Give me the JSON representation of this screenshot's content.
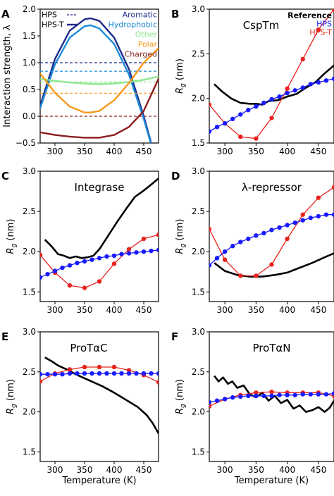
{
  "panel_letters": [
    "A",
    "B",
    "C",
    "D",
    "E",
    "F"
  ],
  "common": {
    "xlabel": "Temperature (K)",
    "ylabel_rg": "R",
    "ylabel_rg_sub": "g",
    "ylabel_rg_unit": " (nm)",
    "xticks": [
      300,
      350,
      400,
      450
    ],
    "colors": {
      "reference": "#000000",
      "hps": "#1a1aff",
      "hpst": "#e8231e"
    }
  },
  "legend_rg": {
    "reference": "Reference",
    "hps": "HPS",
    "hpst": "HPS-T"
  },
  "chart_data": [
    {
      "type": "line",
      "panel": "A",
      "title": "",
      "xlabel": "",
      "ylabel": "Interaction strength, λ",
      "xlim": [
        275,
        475
      ],
      "ylim": [
        -0.5,
        2.0
      ],
      "yticks": [
        -0.5,
        0.0,
        0.5,
        1.0,
        1.5,
        2.0
      ],
      "ytick_labels": [
        "−0.5",
        "0.0",
        "0.5",
        "1.0",
        "1.5",
        "2.0"
      ],
      "model_legend": [
        {
          "name": "HPS",
          "style": "dashed"
        },
        {
          "name": "HPS-T",
          "style": "solid"
        }
      ],
      "series": [
        {
          "name": "Aromatic",
          "color": "#1f2a8c",
          "hps": 1.0,
          "x": [
            275,
            300,
            325,
            350,
            360,
            375,
            400,
            425,
            450,
            475
          ],
          "values": [
            0.2,
            1.07,
            1.6,
            1.81,
            1.83,
            1.78,
            1.47,
            0.88,
            0.0,
            -1.0
          ]
        },
        {
          "name": "Hydrophobic",
          "color": "#1c8ad8",
          "hps": 0.84,
          "x": [
            275,
            300,
            325,
            350,
            360,
            375,
            400,
            425,
            450,
            475
          ],
          "values": [
            0.15,
            0.97,
            1.47,
            1.68,
            1.7,
            1.64,
            1.35,
            0.78,
            -0.05,
            -1.0
          ]
        },
        {
          "name": "Other",
          "color": "#8ee88e",
          "hps": 0.64,
          "x": [
            275,
            300,
            325,
            350,
            375,
            400,
            425,
            450,
            475
          ],
          "values": [
            0.7,
            0.66,
            0.63,
            0.61,
            0.6,
            0.61,
            0.64,
            0.68,
            0.74
          ]
        },
        {
          "name": "Polar",
          "color": "#f59a1b",
          "hps": 0.43,
          "x": [
            275,
            300,
            325,
            350,
            360,
            375,
            400,
            425,
            450,
            475
          ],
          "values": [
            0.8,
            0.44,
            0.18,
            0.07,
            0.07,
            0.1,
            0.3,
            0.62,
            1.0,
            1.27
          ]
        },
        {
          "name": "Charged",
          "color": "#8c1c1c",
          "hps": 0.0,
          "x": [
            275,
            300,
            325,
            350,
            365,
            375,
            400,
            425,
            450,
            475
          ],
          "values": [
            -0.3,
            -0.35,
            -0.38,
            -0.4,
            -0.4,
            -0.4,
            -0.35,
            -0.2,
            0.1,
            0.7
          ]
        }
      ]
    },
    {
      "type": "line",
      "panel": "B",
      "title": "CspTm",
      "xlim": [
        275,
        475
      ],
      "ylim": [
        1.5,
        3.0
      ],
      "yticks": [
        1.5,
        2.0,
        2.5,
        3.0
      ],
      "ytick_labels": [
        "1.5",
        "2.0",
        "2.5",
        "3.0"
      ],
      "show_legend": true,
      "reference": {
        "x": [
          283,
          295,
          310,
          325,
          340,
          350,
          360,
          370,
          385,
          400,
          415,
          430,
          445,
          460,
          475
        ],
        "values": [
          2.16,
          2.08,
          2.0,
          1.95,
          1.94,
          1.94,
          1.93,
          1.97,
          1.98,
          2.02,
          2.05,
          2.12,
          2.18,
          2.28,
          2.37
        ]
      },
      "hps": {
        "x": [
          275,
          287.5,
          300,
          312.5,
          325,
          337.5,
          350,
          362.5,
          375,
          387.5,
          400,
          412.5,
          425,
          437.5,
          450,
          462.5,
          475
        ],
        "values": [
          1.63,
          1.68,
          1.72,
          1.77,
          1.82,
          1.87,
          1.91,
          1.95,
          1.99,
          2.02,
          2.06,
          2.09,
          2.12,
          2.16,
          2.18,
          2.2,
          2.22
        ]
      },
      "hpst": {
        "x": [
          275,
          300,
          325,
          350,
          375,
          400,
          425,
          450,
          475
        ],
        "values": [
          1.93,
          1.72,
          1.57,
          1.55,
          1.78,
          2.11,
          2.44,
          2.77,
          3.0
        ]
      }
    },
    {
      "type": "line",
      "panel": "C",
      "title": "Integrase",
      "xlim": [
        275,
        475
      ],
      "ylim": [
        1.38,
        3.0
      ],
      "yticks": [
        1.5,
        2.0,
        2.5,
        3.0
      ],
      "ytick_labels": [
        "1.5",
        "2.0",
        "2.5",
        "3.0"
      ],
      "reference": {
        "x": [
          283,
          295,
          305,
          315,
          325,
          335,
          345,
          355,
          365,
          375,
          390,
          405,
          420,
          435,
          450,
          462,
          475
        ],
        "values": [
          2.15,
          2.06,
          1.97,
          1.95,
          1.92,
          1.94,
          1.92,
          1.93,
          1.95,
          2.03,
          2.2,
          2.37,
          2.53,
          2.68,
          2.76,
          2.83,
          2.91
        ]
      },
      "hps": {
        "x": [
          275,
          287.5,
          300,
          312.5,
          325,
          337.5,
          350,
          362.5,
          375,
          387.5,
          400,
          412.5,
          425,
          437.5,
          450,
          462.5,
          475
        ],
        "values": [
          1.68,
          1.72,
          1.76,
          1.8,
          1.83,
          1.86,
          1.88,
          1.9,
          1.92,
          1.94,
          1.95,
          1.97,
          1.98,
          1.99,
          2.0,
          2.01,
          2.02
        ]
      },
      "hpst": {
        "x": [
          275,
          300,
          325,
          350,
          375,
          400,
          425,
          450,
          475
        ],
        "values": [
          1.96,
          1.74,
          1.58,
          1.55,
          1.63,
          1.85,
          2.03,
          2.16,
          2.21
        ]
      }
    },
    {
      "type": "line",
      "panel": "D",
      "title": "λ-repressor",
      "xlim": [
        275,
        475
      ],
      "ylim": [
        1.38,
        3.0
      ],
      "yticks": [
        1.5,
        2.0,
        2.5,
        3.0
      ],
      "ytick_labels": [
        "1.5",
        "2.0",
        "2.5",
        "3.0"
      ],
      "reference": {
        "x": [
          283,
          300,
          320,
          340,
          360,
          380,
          400,
          420,
          440,
          460,
          475
        ],
        "values": [
          1.86,
          1.76,
          1.71,
          1.69,
          1.69,
          1.71,
          1.74,
          1.8,
          1.86,
          1.93,
          1.98
        ]
      },
      "hps": {
        "x": [
          275,
          287.5,
          300,
          312.5,
          325,
          337.5,
          350,
          362.5,
          375,
          387.5,
          400,
          412.5,
          425,
          437.5,
          450,
          462.5,
          475
        ],
        "values": [
          1.83,
          1.92,
          2.0,
          2.07,
          2.12,
          2.16,
          2.2,
          2.23,
          2.27,
          2.3,
          2.33,
          2.36,
          2.39,
          2.42,
          2.44,
          2.46,
          2.46
        ]
      },
      "hpst": {
        "x": [
          275,
          300,
          325,
          350,
          375,
          400,
          425,
          450,
          475
        ],
        "values": [
          2.28,
          1.9,
          1.7,
          1.7,
          1.84,
          2.16,
          2.46,
          2.67,
          2.8
        ]
      }
    },
    {
      "type": "line",
      "panel": "E",
      "title": "ProTαC",
      "xlim": [
        275,
        475
      ],
      "ylim": [
        1.38,
        3.0
      ],
      "yticks": [
        1.5,
        2.0,
        2.5,
        3.0
      ],
      "ytick_labels": [
        "1.5",
        "2.0",
        "2.5",
        "3.0"
      ],
      "reference": {
        "x": [
          283,
          295,
          305,
          320,
          335,
          350,
          365,
          380,
          400,
          420,
          440,
          455,
          465,
          475
        ],
        "values": [
          2.68,
          2.63,
          2.58,
          2.53,
          2.47,
          2.42,
          2.37,
          2.32,
          2.24,
          2.15,
          2.06,
          1.96,
          1.86,
          1.73
        ]
      },
      "hps": {
        "x": [
          275,
          287.5,
          300,
          312.5,
          325,
          337.5,
          350,
          362.5,
          375,
          387.5,
          400,
          412.5,
          425,
          437.5,
          450,
          462.5,
          475
        ],
        "values": [
          2.47,
          2.47,
          2.47,
          2.47,
          2.48,
          2.48,
          2.48,
          2.48,
          2.48,
          2.48,
          2.48,
          2.48,
          2.48,
          2.48,
          2.48,
          2.48,
          2.48
        ]
      },
      "hpst": {
        "x": [
          275,
          300,
          325,
          350,
          375,
          400,
          425,
          450,
          475
        ],
        "values": [
          2.38,
          2.48,
          2.53,
          2.56,
          2.56,
          2.56,
          2.52,
          2.46,
          2.37
        ]
      }
    },
    {
      "type": "line",
      "panel": "F",
      "title": "ProTαN",
      "xlim": [
        275,
        475
      ],
      "ylim": [
        1.38,
        3.0
      ],
      "yticks": [
        1.5,
        2.0,
        2.5,
        3.0
      ],
      "ytick_labels": [
        "1.5",
        "2.0",
        "2.5",
        "3.0"
      ],
      "reference": {
        "x": [
          283,
          290,
          297,
          305,
          312,
          320,
          330,
          340,
          350,
          360,
          370,
          380,
          390,
          400,
          410,
          420,
          430,
          440,
          450,
          460,
          468,
          475
        ],
        "values": [
          2.45,
          2.38,
          2.43,
          2.35,
          2.38,
          2.3,
          2.33,
          2.22,
          2.18,
          2.24,
          2.14,
          2.2,
          2.11,
          2.15,
          2.04,
          2.08,
          2.0,
          2.02,
          2.06,
          2.0,
          2.05,
          2.14
        ]
      },
      "hps": {
        "x": [
          275,
          287.5,
          300,
          312.5,
          325,
          337.5,
          350,
          362.5,
          375,
          387.5,
          400,
          412.5,
          425,
          437.5,
          450,
          462.5,
          475
        ],
        "values": [
          2.12,
          2.14,
          2.16,
          2.18,
          2.19,
          2.2,
          2.2,
          2.2,
          2.2,
          2.21,
          2.21,
          2.21,
          2.22,
          2.22,
          2.22,
          2.22,
          2.23
        ]
      },
      "hpst": {
        "x": [
          275,
          300,
          325,
          350,
          375,
          400,
          425,
          450,
          475
        ],
        "values": [
          2.07,
          2.16,
          2.21,
          2.24,
          2.25,
          2.24,
          2.24,
          2.24,
          2.2
        ]
      }
    }
  ]
}
